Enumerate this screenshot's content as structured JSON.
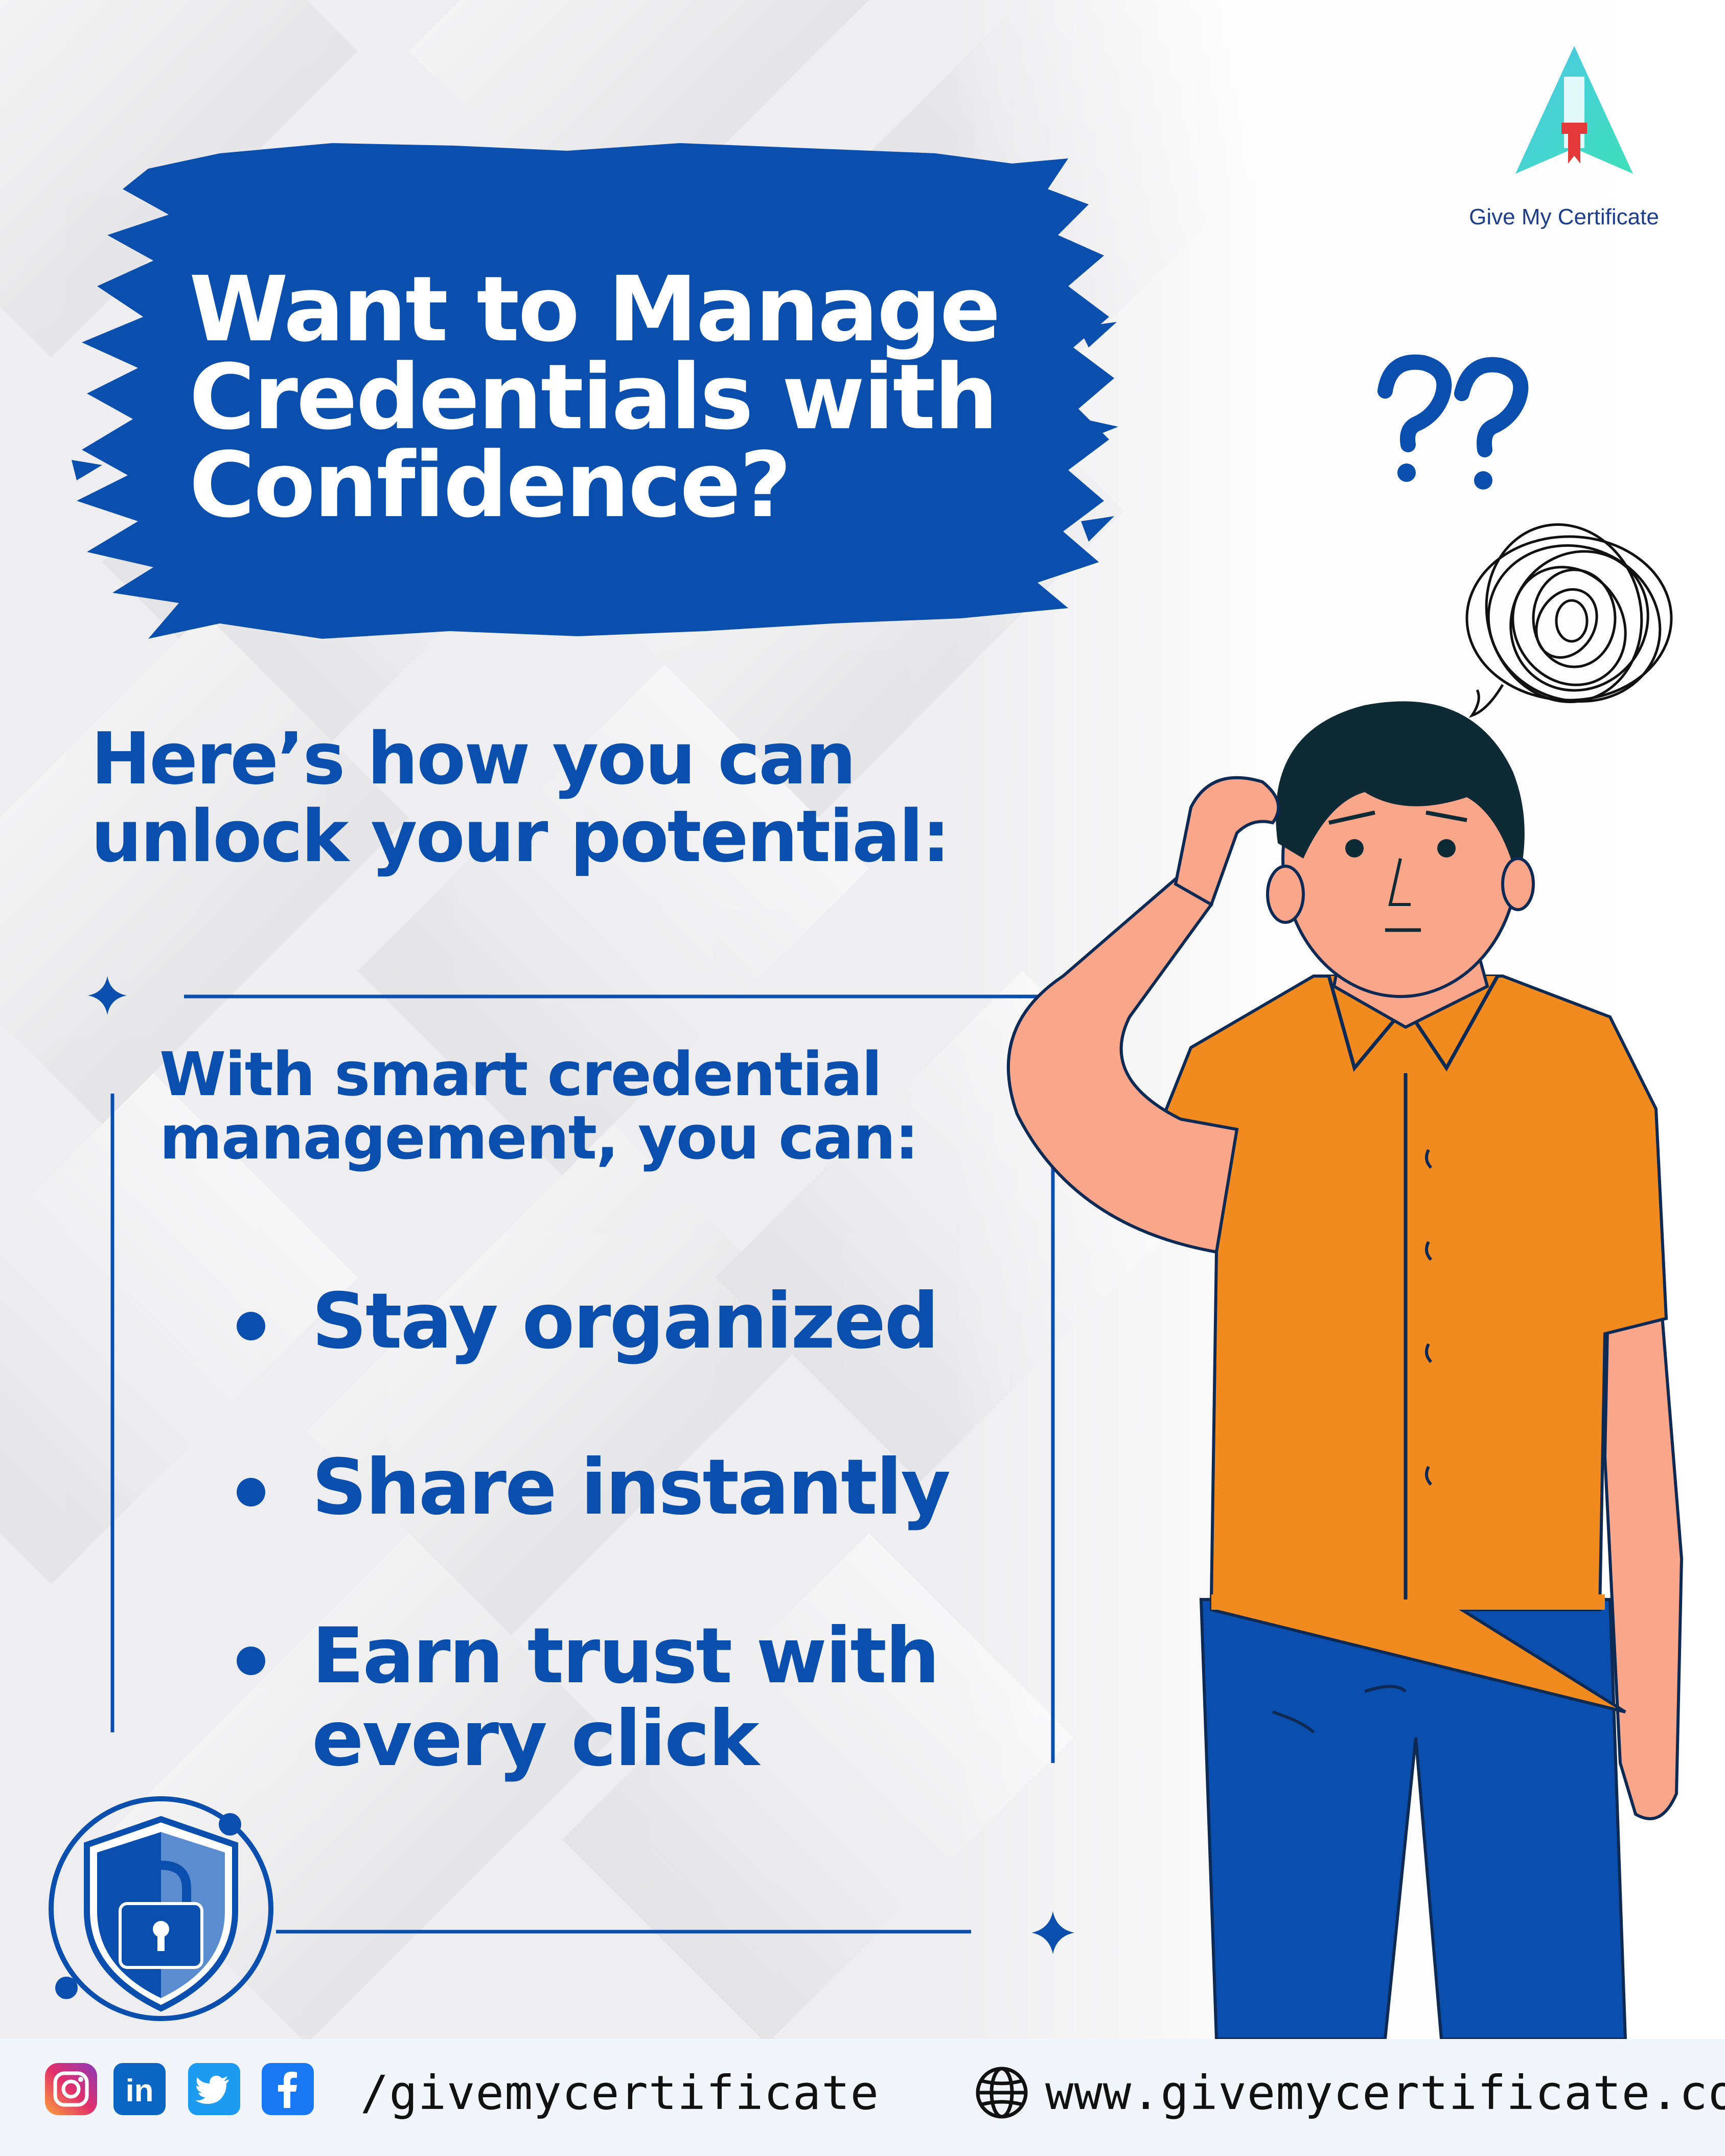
{
  "brand": {
    "name": "Give My Certificate",
    "primary_color": "#0b4fae",
    "accent_color": "#f18a1f"
  },
  "headline": {
    "lines": [
      "Want to Manage",
      "Credentials with",
      "Confidence?"
    ]
  },
  "subhead": {
    "lines": [
      "Here’s how you can",
      "unlock your potential:"
    ]
  },
  "box": {
    "intro_lines": [
      "With smart credential",
      "management, you can:"
    ],
    "bullets": [
      {
        "lines": [
          "Stay organized"
        ]
      },
      {
        "lines": [
          "Share instantly"
        ]
      },
      {
        "lines": [
          "Earn trust with",
          "every click"
        ]
      }
    ]
  },
  "decorations": {
    "question_marks": "??",
    "shield_icon": "shield-lock-icon",
    "sparkle_icon": "sparkle-icon",
    "person": "confused-man-scratching-head"
  },
  "footer": {
    "social_icons": [
      "instagram-icon",
      "linkedin-icon",
      "twitter-icon",
      "facebook-icon"
    ],
    "handle": "/givemycertificate",
    "globe_icon": "globe-icon",
    "website": "www.givemycertificate.com"
  }
}
